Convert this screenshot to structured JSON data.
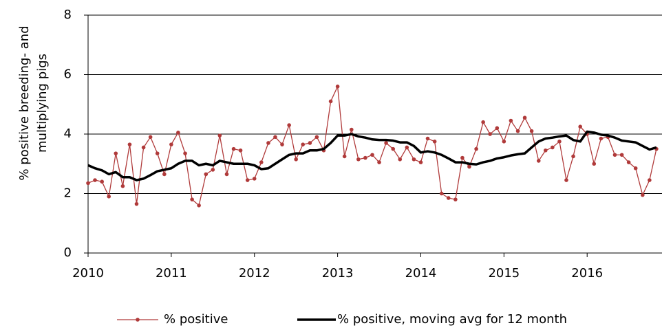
{
  "chart_data": {
    "type": "line",
    "y_label": [
      "% positive breeding- and",
      "multiplying pigs"
    ],
    "x": [
      2010,
      2010.083,
      2010.167,
      2010.25,
      2010.333,
      2010.417,
      2010.5,
      2010.583,
      2010.667,
      2010.75,
      2010.833,
      2010.917,
      2011,
      2011.083,
      2011.167,
      2011.25,
      2011.333,
      2011.417,
      2011.5,
      2011.583,
      2011.667,
      2011.75,
      2011.833,
      2011.917,
      2012,
      2012.083,
      2012.167,
      2012.25,
      2012.333,
      2012.417,
      2012.5,
      2012.583,
      2012.667,
      2012.75,
      2012.833,
      2012.917,
      2013,
      2013.083,
      2013.167,
      2013.25,
      2013.333,
      2013.417,
      2013.5,
      2013.583,
      2013.667,
      2013.75,
      2013.833,
      2013.917,
      2014,
      2014.083,
      2014.167,
      2014.25,
      2014.333,
      2014.417,
      2014.5,
      2014.583,
      2014.667,
      2014.75,
      2014.833,
      2014.917,
      2015,
      2015.083,
      2015.167,
      2015.25,
      2015.333,
      2015.417,
      2015.5,
      2015.583,
      2015.667,
      2015.75,
      2015.833,
      2015.917,
      2016,
      2016.083,
      2016.167,
      2016.25,
      2016.333,
      2016.417,
      2016.5,
      2016.583,
      2016.667,
      2016.75,
      2016.833
    ],
    "series": [
      {
        "name": "% positive",
        "color": "#b03a3a",
        "markers": true,
        "values": [
          2.35,
          2.45,
          2.4,
          1.9,
          3.35,
          2.25,
          3.65,
          1.65,
          3.55,
          3.9,
          3.35,
          2.65,
          3.65,
          4.05,
          3.35,
          1.8,
          1.6,
          2.65,
          2.8,
          3.95,
          2.65,
          3.5,
          3.45,
          2.45,
          2.5,
          3.05,
          3.7,
          3.9,
          3.65,
          4.3,
          3.15,
          3.65,
          3.7,
          3.9,
          3.45,
          5.1,
          5.6,
          3.25,
          4.15,
          3.15,
          3.2,
          3.3,
          3.05,
          3.7,
          3.5,
          3.15,
          3.55,
          3.15,
          3.05,
          3.85,
          3.75,
          2.0,
          1.85,
          1.8,
          3.2,
          2.9,
          3.5,
          4.4,
          4.0,
          4.2,
          3.75,
          4.45,
          4.1,
          4.55,
          4.1,
          3.1,
          3.45,
          3.55,
          3.75,
          2.45,
          3.25,
          4.25,
          4.0,
          3.0,
          3.85,
          3.9,
          3.3,
          3.3,
          3.05,
          2.85,
          1.95,
          2.45,
          3.5
        ]
      },
      {
        "name": "% positive, moving avg for 12 month",
        "color": "#000000",
        "markers": false,
        "values": [
          2.95,
          2.85,
          2.78,
          2.65,
          2.72,
          2.55,
          2.55,
          2.45,
          2.5,
          2.62,
          2.75,
          2.8,
          2.85,
          3.0,
          3.1,
          3.1,
          2.95,
          3.0,
          2.95,
          3.1,
          3.05,
          3.0,
          3.0,
          3.0,
          2.95,
          2.82,
          2.85,
          3.0,
          3.15,
          3.3,
          3.35,
          3.35,
          3.45,
          3.45,
          3.5,
          3.7,
          3.95,
          3.95,
          4.0,
          3.92,
          3.88,
          3.82,
          3.8,
          3.8,
          3.78,
          3.72,
          3.72,
          3.6,
          3.38,
          3.42,
          3.38,
          3.3,
          3.18,
          3.05,
          3.05,
          3.0,
          2.98,
          3.05,
          3.1,
          3.18,
          3.22,
          3.28,
          3.32,
          3.35,
          3.55,
          3.75,
          3.85,
          3.88,
          3.92,
          3.95,
          3.8,
          3.75,
          4.08,
          4.05,
          3.98,
          3.95,
          3.88,
          3.78,
          3.75,
          3.72,
          3.6,
          3.48,
          3.55
        ]
      }
    ],
    "xlim": [
      2010,
      2016.9
    ],
    "xticks": [
      2010,
      2011,
      2012,
      2013,
      2014,
      2015,
      2016
    ],
    "ylim": [
      0,
      8
    ],
    "yticks": [
      0,
      2,
      4,
      6,
      8
    ],
    "grid": true,
    "legend": "bottom"
  }
}
